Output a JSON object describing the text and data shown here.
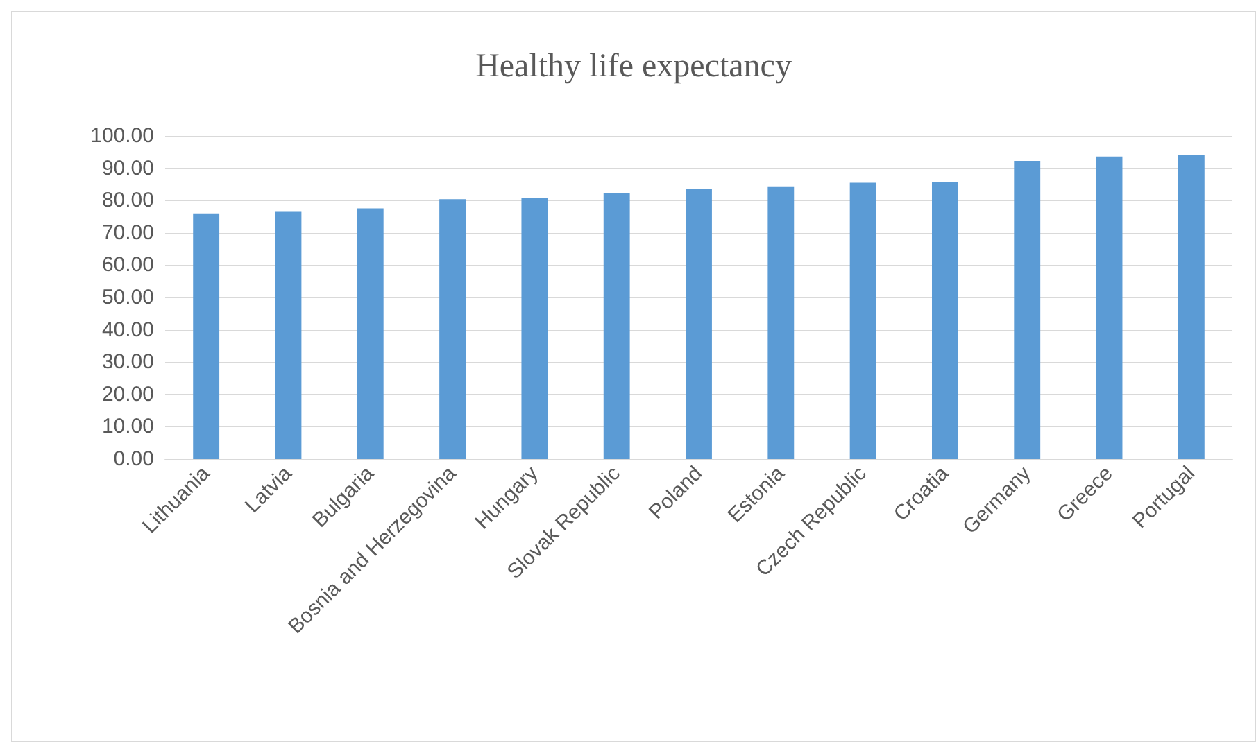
{
  "chart_data": {
    "type": "bar",
    "title": "Healthy life expectancy",
    "categories": [
      "Lithuania",
      "Latvia",
      "Bulgaria",
      "Bosnia and Herzegovina",
      "Hungary",
      "Slovak Republic",
      "Poland",
      "Estonia",
      "Czech Republic",
      "Croatia",
      "Germany",
      "Greece",
      "Portugal"
    ],
    "values": [
      76.0,
      76.7,
      77.6,
      80.4,
      80.7,
      82.2,
      83.7,
      84.4,
      85.5,
      85.7,
      92.3,
      93.6,
      94.1
    ],
    "color": "#5b9bd5",
    "ylim": [
      0,
      100
    ],
    "yticks": [
      {
        "value": 0,
        "label": "0.00"
      },
      {
        "value": 10,
        "label": "10.00"
      },
      {
        "value": 20,
        "label": "20.00"
      },
      {
        "value": 30,
        "label": "30.00"
      },
      {
        "value": 40,
        "label": "40.00"
      },
      {
        "value": 50,
        "label": "50.00"
      },
      {
        "value": 60,
        "label": "60.00"
      },
      {
        "value": 70,
        "label": "70.00"
      },
      {
        "value": 80,
        "label": "80.00"
      },
      {
        "value": 90,
        "label": "90.00"
      },
      {
        "value": 100,
        "label": "100.00"
      }
    ],
    "grid": "y"
  }
}
